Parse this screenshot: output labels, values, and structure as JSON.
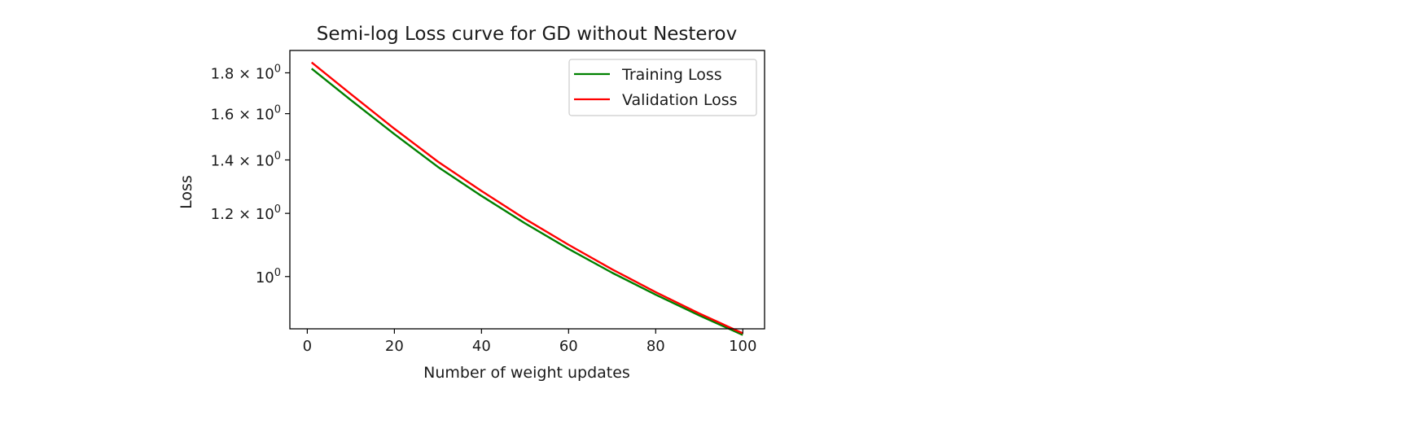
{
  "chart_data": {
    "type": "line",
    "title": "Semi-log Loss curve for GD without Nesterov",
    "xlabel": "Number of weight updates",
    "ylabel": "Loss",
    "yscale": "log",
    "xlim": [
      -4,
      105
    ],
    "ylim": [
      0.86,
      1.92
    ],
    "grid": false,
    "legend_placement": "top-right",
    "x_ticks": [
      0,
      20,
      40,
      60,
      80,
      100
    ],
    "y_ticks": [
      {
        "value": 1.8,
        "mantissa": "1.8",
        "exponent": "0"
      },
      {
        "value": 1.6,
        "mantissa": "1.6",
        "exponent": "0"
      },
      {
        "value": 1.4,
        "mantissa": "1.4",
        "exponent": "0"
      },
      {
        "value": 1.2,
        "mantissa": "1.2",
        "exponent": "0"
      },
      {
        "value": 1.0,
        "mantissa": "10",
        "exponent": "0"
      }
    ],
    "x": [
      1,
      10,
      20,
      30,
      40,
      50,
      60,
      70,
      80,
      90,
      100
    ],
    "series": [
      {
        "name": "Training Loss",
        "color": "#008000",
        "values": [
          1.822,
          1.664,
          1.508,
          1.372,
          1.262,
          1.166,
          1.083,
          1.011,
          0.949,
          0.894,
          0.845
        ]
      },
      {
        "name": "Validation Loss",
        "color": "#ff0000",
        "values": [
          1.855,
          1.693,
          1.532,
          1.393,
          1.28,
          1.181,
          1.096,
          1.021,
          0.956,
          0.899,
          0.849
        ]
      }
    ]
  }
}
